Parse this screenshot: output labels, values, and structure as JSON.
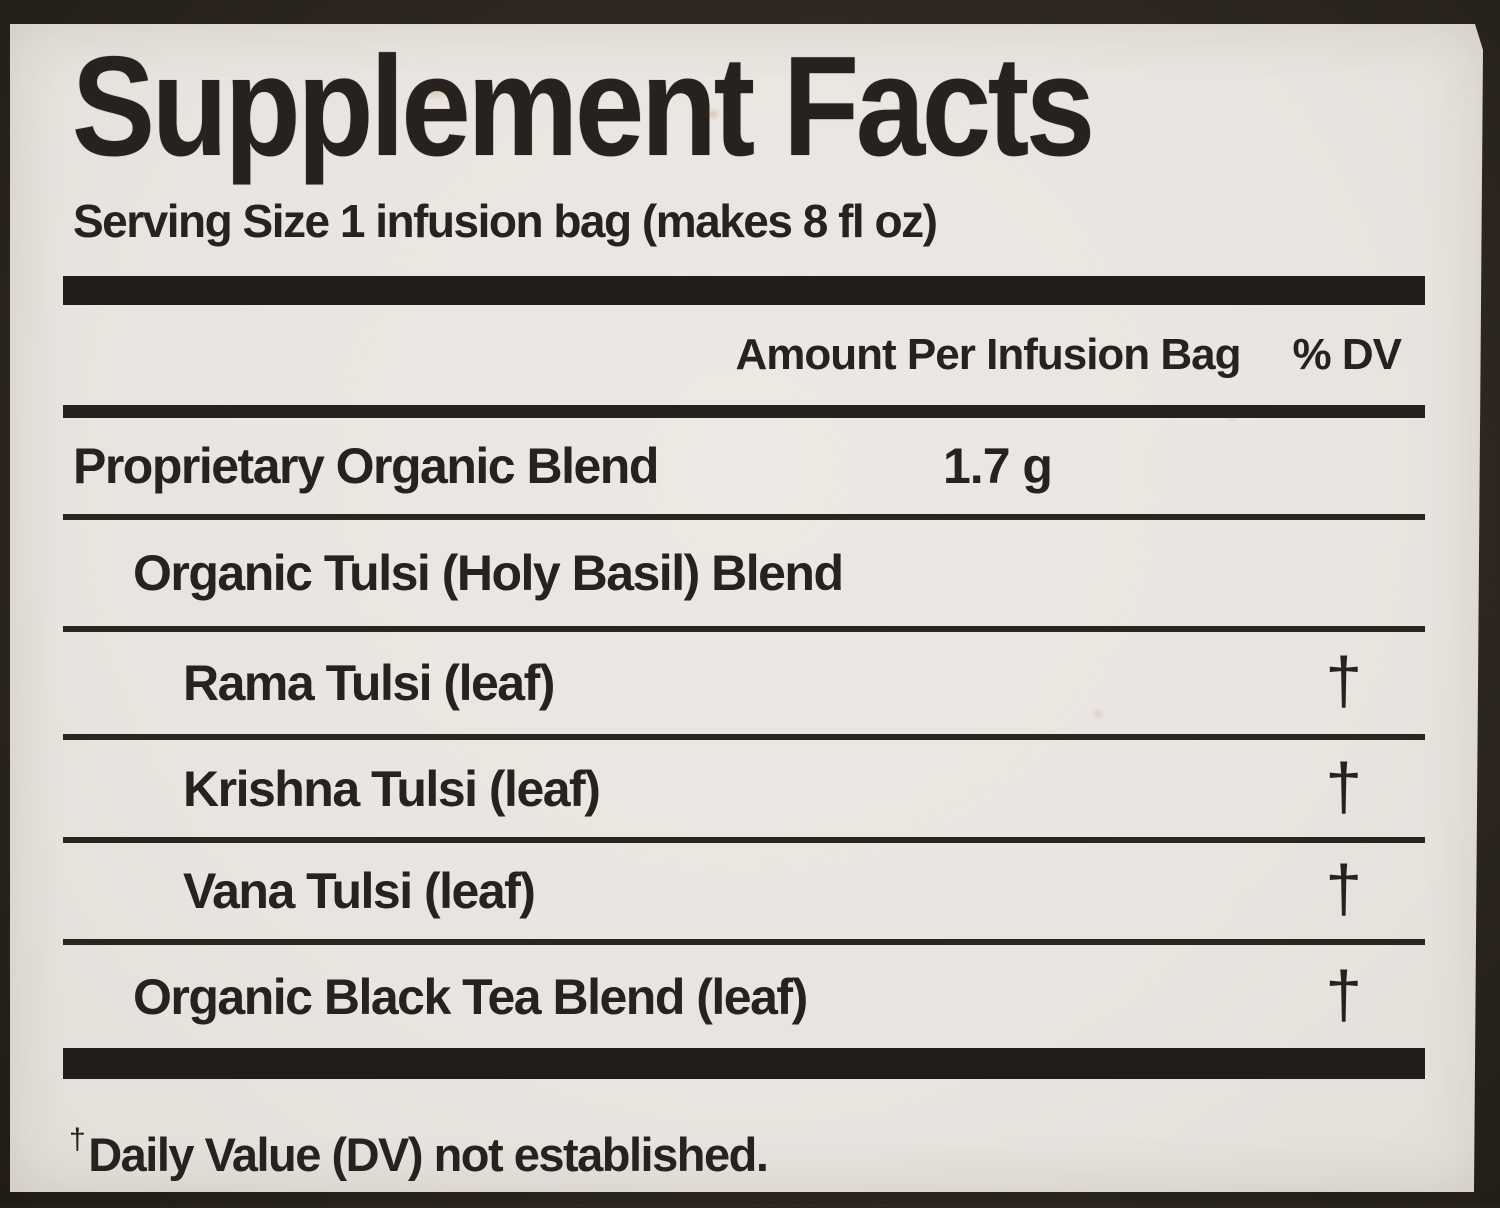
{
  "label": {
    "title": "Supplement Facts",
    "serving_size": "Serving Size 1 infusion bag (makes 8 fl oz)",
    "columns": {
      "amount": "Amount Per Infusion Bag",
      "dv": "% DV"
    },
    "rows": [
      {
        "name": "Proprietary Organic Blend",
        "amount": "1.7 g",
        "dv": "",
        "indent": 0
      },
      {
        "name": "Organic Tulsi (Holy Basil) Blend",
        "amount": "",
        "dv": "",
        "indent": 1
      },
      {
        "name": "Rama Tulsi (leaf)",
        "amount": "",
        "dv": "†",
        "indent": 2
      },
      {
        "name": "Krishna Tulsi (leaf)",
        "amount": "",
        "dv": "†",
        "indent": 2
      },
      {
        "name": "Vana Tulsi (leaf)",
        "amount": "",
        "dv": "†",
        "indent": 2
      },
      {
        "name": "Organic Black Tea Blend (leaf)",
        "amount": "",
        "dv": "†",
        "indent": 1
      }
    ],
    "footnote": {
      "symbol": "†",
      "text": "Daily Value (DV) not established."
    },
    "colors": {
      "paper": "#e9e4df",
      "ink": "#272220",
      "rule": "#2b2520",
      "surround": "#2e2721"
    }
  }
}
